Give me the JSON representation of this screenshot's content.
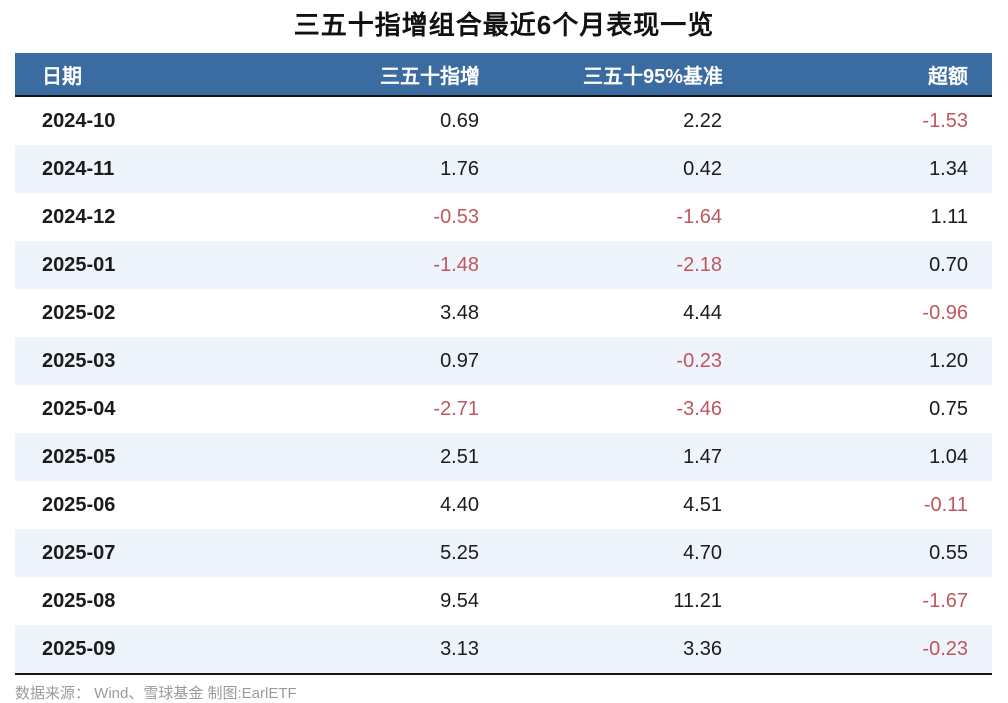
{
  "title": "三五十指增组合最近6个月表现一览",
  "colors": {
    "header_bg": "#3a6ca1",
    "header_text": "#ffffff",
    "stripe_bg": "#edf4fb",
    "negative_value": "#c2565f",
    "body_text": "#1b1b1b",
    "title_text": "#111111",
    "source_text": "#9b9b9b",
    "rule": "#141414"
  },
  "table": {
    "columns": {
      "date": "日期",
      "fund": "三五十指增",
      "bench": "三五十95%基准",
      "excess": "超额"
    },
    "rows": [
      {
        "date": "2024-10",
        "fund": "0.69",
        "bench": "2.22",
        "excess": "-1.53"
      },
      {
        "date": "2024-11",
        "fund": "1.76",
        "bench": "0.42",
        "excess": "1.34"
      },
      {
        "date": "2024-12",
        "fund": "-0.53",
        "bench": "-1.64",
        "excess": "1.11"
      },
      {
        "date": "2025-01",
        "fund": "-1.48",
        "bench": "-2.18",
        "excess": "0.70"
      },
      {
        "date": "2025-02",
        "fund": "3.48",
        "bench": "4.44",
        "excess": "-0.96"
      },
      {
        "date": "2025-03",
        "fund": "0.97",
        "bench": "-0.23",
        "excess": "1.20"
      },
      {
        "date": "2025-04",
        "fund": "-2.71",
        "bench": "-3.46",
        "excess": "0.75"
      },
      {
        "date": "2025-05",
        "fund": "2.51",
        "bench": "1.47",
        "excess": "1.04"
      },
      {
        "date": "2025-06",
        "fund": "4.40",
        "bench": "4.51",
        "excess": "-0.11"
      },
      {
        "date": "2025-07",
        "fund": "5.25",
        "bench": "4.70",
        "excess": "0.55"
      },
      {
        "date": "2025-08",
        "fund": "9.54",
        "bench": "11.21",
        "excess": "-1.67"
      },
      {
        "date": "2025-09",
        "fund": "3.13",
        "bench": "3.36",
        "excess": "-0.23"
      }
    ]
  },
  "footer": {
    "source": "数据来源： Wind、雪球基金 制图:EarlETF"
  },
  "chart_data": {
    "type": "table",
    "title": "三五十指增组合最近6个月表现一览",
    "columns": [
      "日期",
      "三五十指增",
      "三五十95%基准",
      "超额"
    ],
    "rows": [
      [
        "2024-10",
        0.69,
        2.22,
        -1.53
      ],
      [
        "2024-11",
        1.76,
        0.42,
        1.34
      ],
      [
        "2024-12",
        -0.53,
        -1.64,
        1.11
      ],
      [
        "2025-01",
        -1.48,
        -2.18,
        0.7
      ],
      [
        "2025-02",
        3.48,
        4.44,
        -0.96
      ],
      [
        "2025-03",
        0.97,
        -0.23,
        1.2
      ],
      [
        "2025-04",
        -2.71,
        -3.46,
        0.75
      ],
      [
        "2025-05",
        2.51,
        1.47,
        1.04
      ],
      [
        "2025-06",
        4.4,
        4.51,
        -0.11
      ],
      [
        "2025-07",
        5.25,
        4.7,
        0.55
      ],
      [
        "2025-08",
        9.54,
        11.21,
        -1.67
      ],
      [
        "2025-09",
        3.13,
        3.36,
        -0.23
      ]
    ],
    "negative_values_colored": "#c2565f",
    "source_note": "数据来源： Wind、雪球基金 制图:EarlETF"
  }
}
